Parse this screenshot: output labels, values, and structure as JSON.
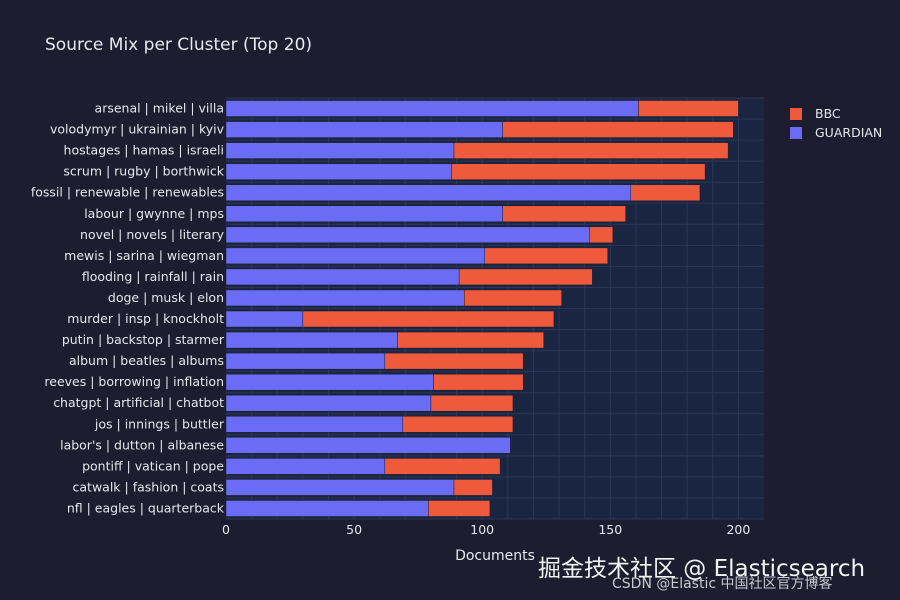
{
  "colors": {
    "background": "#1d1d2f",
    "plot_background": "#1a2541",
    "grid": "#2b3756",
    "BBC": "#ef5a3d",
    "GUARDIAN": "#6b6cf6"
  },
  "watermark": {
    "line1": "掘金技术社区 @ Elasticsearch",
    "line2": "CSDN @Elastic 中国社区官方博客"
  },
  "chart_data": {
    "type": "bar",
    "orientation": "horizontal",
    "stacked": true,
    "title": "Source Mix per Cluster (Top 20)",
    "xlabel": "Documents",
    "ylabel": "",
    "xlim": [
      0,
      210
    ],
    "xticks": [
      0,
      50,
      100,
      150,
      200
    ],
    "grid": true,
    "legend_position": "top-right",
    "categories": [
      "arsenal | mikel | villa",
      "volodymyr | ukrainian | kyiv",
      "hostages | hamas | israeli",
      "scrum | rugby | borthwick",
      "fossil | renewable | renewables",
      "labour | gwynne | mps",
      "novel | novels | literary",
      "mewis | sarina | wiegman",
      "flooding | rainfall | rain",
      "doge | musk | elon",
      "murder | insp | knockholt",
      "putin | backstop | starmer",
      "album | beatles | albums",
      "reeves | borrowing | inflation",
      "chatgpt | artificial | chatbot",
      "jos | innings | buttler",
      "labor's | dutton | albanese",
      "pontiff | vatican | pope",
      "catwalk | fashion | coats",
      "nfl | eagles | quarterback"
    ],
    "series": [
      {
        "name": "GUARDIAN",
        "values": [
          161,
          108,
          89,
          88,
          158,
          108,
          142,
          101,
          91,
          93,
          30,
          67,
          62,
          81,
          80,
          69,
          111,
          62,
          89,
          79
        ]
      },
      {
        "name": "BBC",
        "values": [
          39,
          90,
          107,
          99,
          27,
          48,
          9,
          48,
          52,
          38,
          98,
          57,
          54,
          35,
          32,
          43,
          0,
          45,
          15,
          24
        ]
      }
    ],
    "legend": [
      "BBC",
      "GUARDIAN"
    ]
  }
}
